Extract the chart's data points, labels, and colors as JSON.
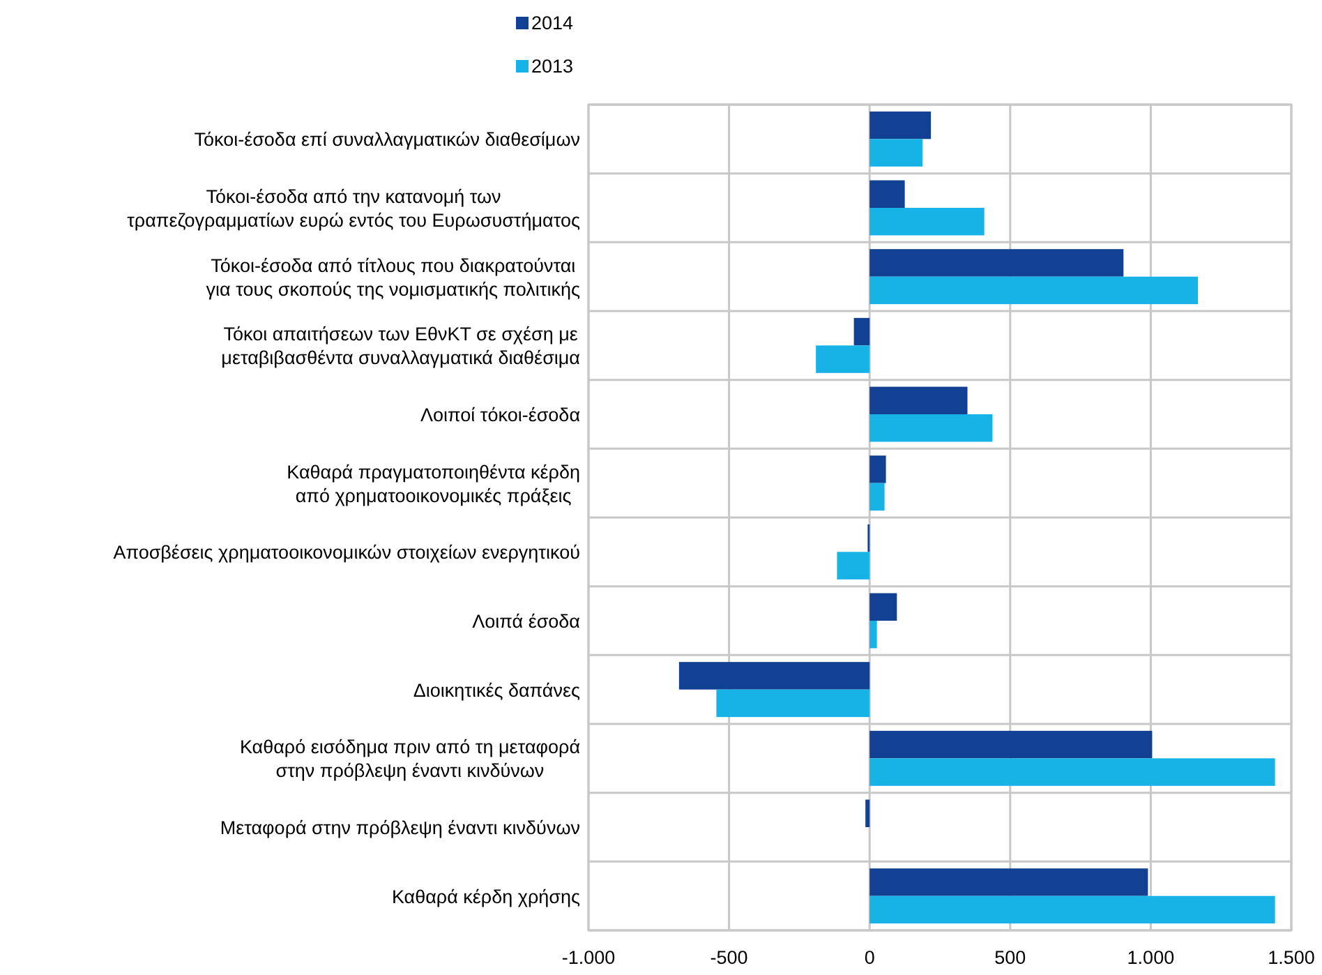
{
  "chart_data": {
    "type": "bar",
    "orientation": "horizontal",
    "categories": [
      "Τόκοι-έσοδα επί συναλλαγματικών διαθεσίμων",
      "Τόκοι-έσοδα από την κατανομή των τραπεζογραμματίων ευρώ εντός του Ευρωσυστήματος",
      "Τόκοι-έσοδα από τίτλους που διακρατούνται για τους σκοπούς της νομισματικής πολιτικής",
      "Τόκοι απαιτήσεων των ΕθνΚΤ σε σχέση με μεταβιβασθέντα συναλλαγματικά διαθέσιμα",
      "Λοιποί τόκοι-έσοδα",
      "Καθαρά πραγματοποιηθέντα κέρδη από χρηματοοικονομικές πράξεις",
      "Αποσβέσεις χρηματοοικονομικών στοιχείων ενεργητικού",
      "Λοιπά έσοδα",
      "Διοικητικές δαπάνες",
      "Καθαρό εισόδημα πριν από τη μεταφορά στην πρόβλεψη έναντι κινδύνων",
      "Μεταφορά στην πρόβλεψη έναντι κινδύνων",
      "Καθαρά κέρδη χρήσης"
    ],
    "series": [
      {
        "name": "2014",
        "color": "#124193",
        "values": [
          218,
          125,
          903,
          -56,
          348,
          58,
          -7,
          97,
          -678,
          1005,
          -15,
          990
        ]
      },
      {
        "name": "2013",
        "color": "#17b3e6",
        "values": [
          188,
          408,
          1168,
          -191,
          437,
          53,
          -116,
          26,
          -545,
          1442,
          null,
          1442
        ]
      }
    ],
    "xlim": [
      -1000,
      1500
    ],
    "xticks": [
      {
        "value": -1000,
        "label": "-1.000"
      },
      -500,
      0,
      500,
      {
        "value": 1000,
        "label": "1.000"
      },
      {
        "value": 1500,
        "label": "1.500"
      }
    ],
    "grid": true,
    "legend": "top left"
  }
}
